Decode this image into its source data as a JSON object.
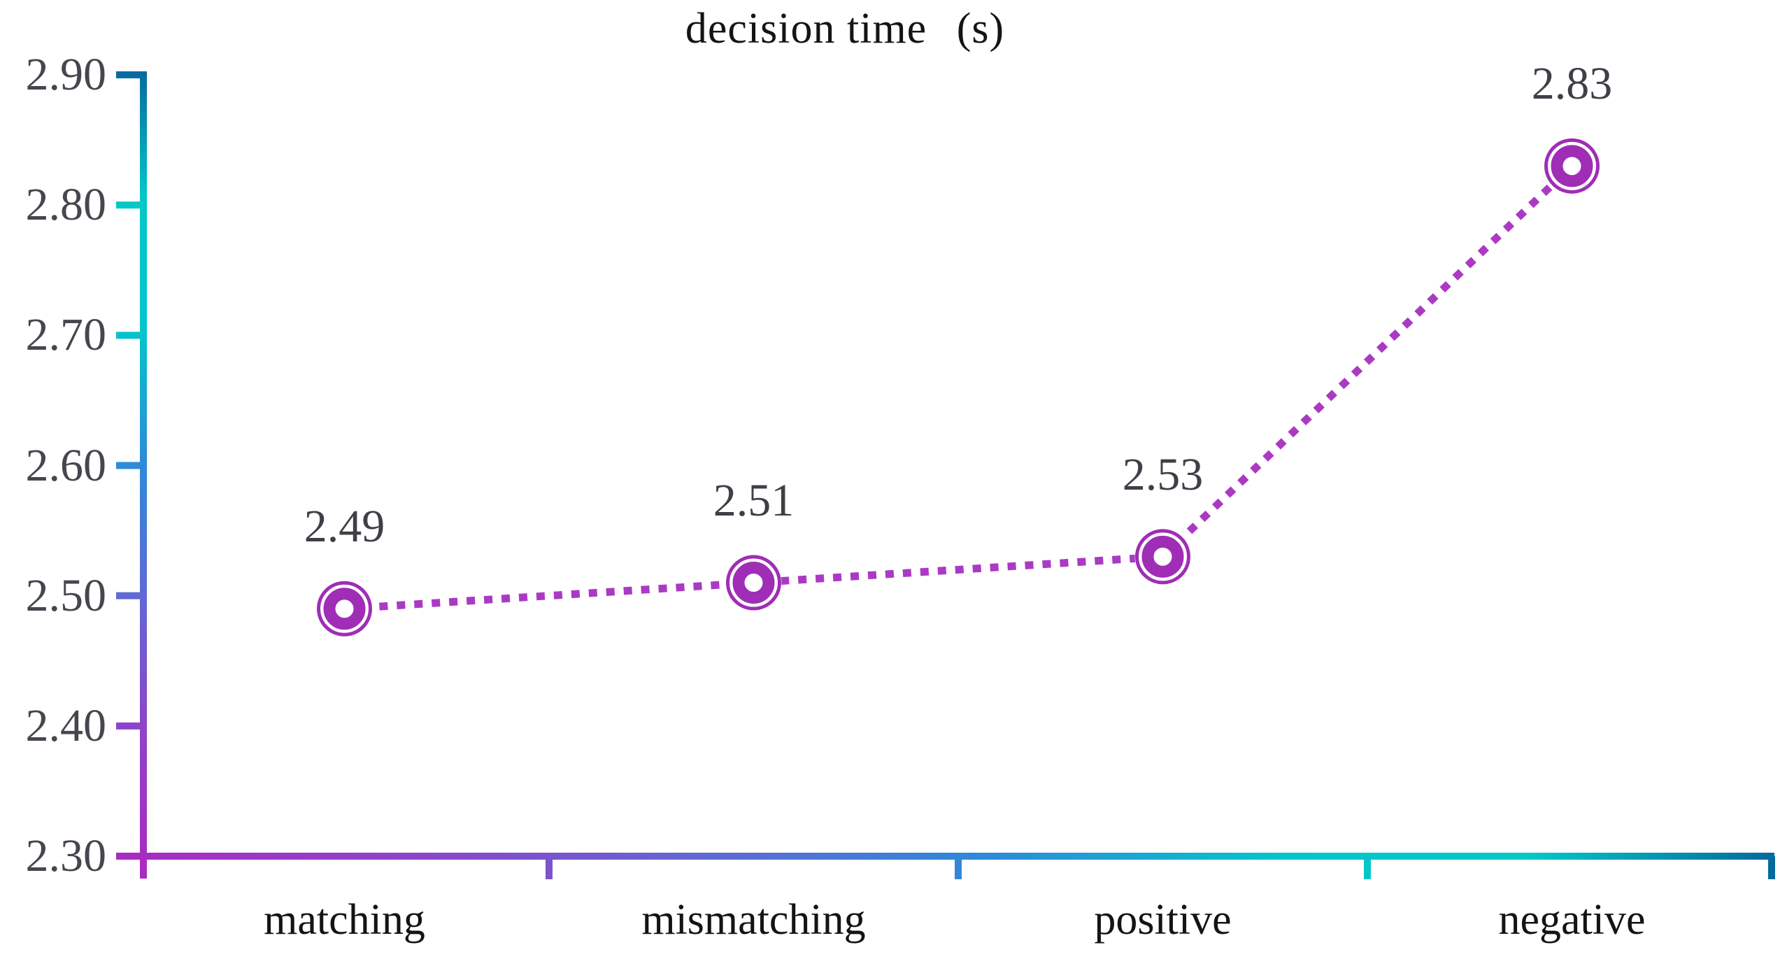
{
  "title": {
    "main": "decision time",
    "unit": "(s)"
  },
  "chart_data": {
    "type": "line",
    "title": "decision time (s)",
    "categories": [
      "matching",
      "mismatching",
      "positive",
      "negative"
    ],
    "values": [
      2.49,
      2.51,
      2.53,
      2.83
    ],
    "point_labels": [
      "2.49",
      "2.51",
      "2.53",
      "2.83"
    ],
    "ylim": [
      2.3,
      2.9
    ],
    "ytick_step": 0.1,
    "ytick_labels": [
      "2.90",
      "2.80",
      "2.70",
      "2.60",
      "2.50",
      "2.40",
      "2.30"
    ],
    "xlabel": "",
    "ylabel": "",
    "line_style": "dotted",
    "marker_style": "double-ring-donut",
    "grid": false,
    "legend": false,
    "colors": {
      "series_line": "#aa3ac4",
      "marker": "#9f2db6",
      "marker_hole": "#ffffff",
      "value_label_text": "#3f3f47",
      "tick_label_text": "#46464e",
      "category_label_text": "#141414",
      "title_text": "#141414",
      "background": "#ffffff",
      "axis_gradient_from_origin": [
        "#a92bc2",
        "#8c46ca",
        "#5f6ad4",
        "#2e8ad8",
        "#06c4cc",
        "#04c8c8",
        "#056a9e"
      ]
    }
  }
}
